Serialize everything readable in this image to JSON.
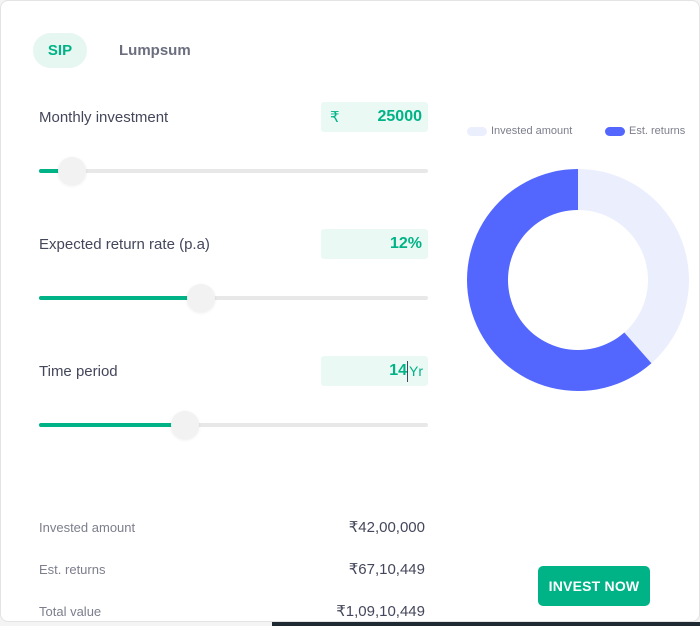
{
  "tabs": {
    "sip": "SIP",
    "lumpsum": "Lumpsum"
  },
  "monthly": {
    "label": "Monthly investment",
    "currency": "₹",
    "value": "25000",
    "slider_fraction": 0.06
  },
  "rate": {
    "label": "Expected return rate (p.a)",
    "value": "12%",
    "slider_fraction": 0.39
  },
  "time": {
    "label": "Time period",
    "value": "14",
    "unit": "Yr",
    "slider_fraction": 0.35
  },
  "summary": {
    "invested_label": "Invested amount",
    "invested_value": "₹42,00,000",
    "returns_label": "Est. returns",
    "returns_value": "₹67,10,449",
    "total_label": "Total value",
    "total_value": "₹1,09,10,449"
  },
  "chart_data": {
    "type": "pie",
    "style": "donut",
    "legend_position": "top",
    "series": [
      {
        "name": "Invested amount",
        "value": 4200000,
        "color": "#ebeefd"
      },
      {
        "name": "Est. returns",
        "value": 6710449,
        "color": "#5367ff"
      }
    ]
  },
  "cta": {
    "label": "INVEST NOW"
  },
  "colors": {
    "accent": "#00b386",
    "accent_light": "#ebf9f5",
    "returns": "#5367ff",
    "invested": "#ebeefd"
  }
}
